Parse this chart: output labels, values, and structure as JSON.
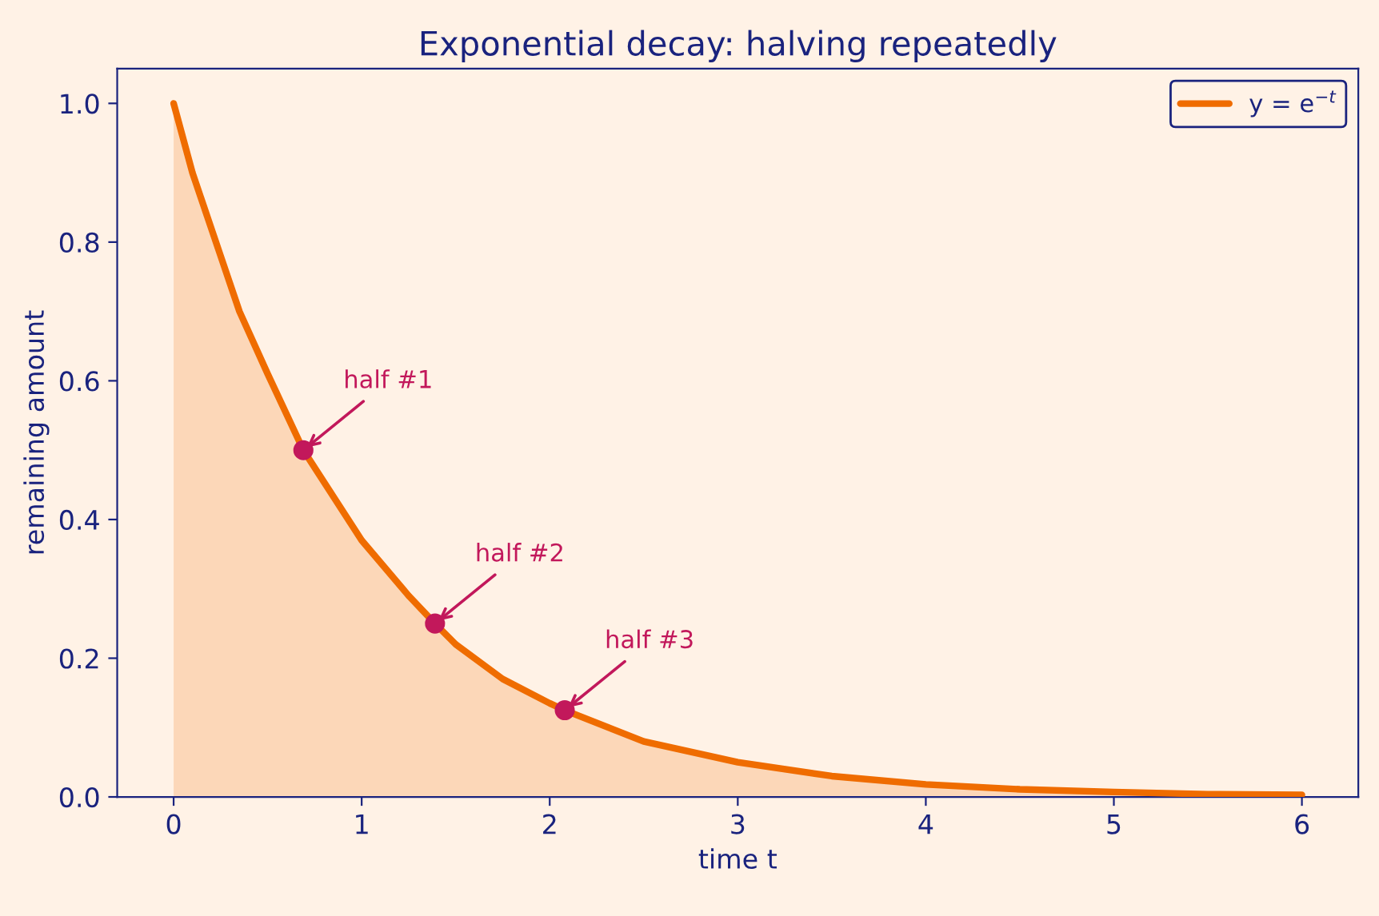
{
  "chart_data": {
    "type": "area",
    "title": "Exponential decay: halving repeatedly",
    "xlabel": "time t",
    "ylabel": "remaining amount",
    "series": [
      {
        "name": "y = e$^{−t}$",
        "color": "#ef6c00",
        "x": [
          0,
          0.1,
          0.25,
          0.35,
          0.5,
          0.69,
          1,
          1.25,
          1.39,
          1.5,
          1.75,
          2,
          2.08,
          2.5,
          3,
          3.5,
          4,
          4.5,
          5,
          5.5,
          6
        ],
        "values": [
          1.0,
          0.9,
          0.78,
          0.7,
          0.61,
          0.5,
          0.37,
          0.29,
          0.25,
          0.22,
          0.17,
          0.135,
          0.125,
          0.08,
          0.05,
          0.03,
          0.018,
          0.011,
          0.007,
          0.004,
          0.003
        ]
      },
      {
        "type": "scatter",
        "color": "#c2185b",
        "x": [
          0.69,
          1.39,
          2.08
        ],
        "values": [
          0.5,
          0.25,
          0.125
        ]
      }
    ],
    "annotations": [
      {
        "text": "half #1",
        "x": 0.69,
        "y": 0.5
      },
      {
        "text": "half #2",
        "x": 1.39,
        "y": 0.25
      },
      {
        "text": "half #3",
        "x": 2.08,
        "y": 0.125
      }
    ],
    "xlim": [
      -0.3,
      6.3
    ],
    "ylim": [
      0,
      1.05
    ],
    "xticks": [
      0,
      1,
      2,
      3,
      4,
      5,
      6
    ],
    "yticks": [
      {
        "value": 0,
        "label": "0.0"
      },
      {
        "value": 0.2,
        "label": "0.2"
      },
      {
        "value": 0.4,
        "label": "0.4"
      },
      {
        "value": 0.6,
        "label": "0.6"
      },
      {
        "value": 0.8,
        "label": "0.8"
      },
      {
        "value": 1,
        "label": "1.0"
      }
    ],
    "legend": "top right",
    "grid": false
  }
}
